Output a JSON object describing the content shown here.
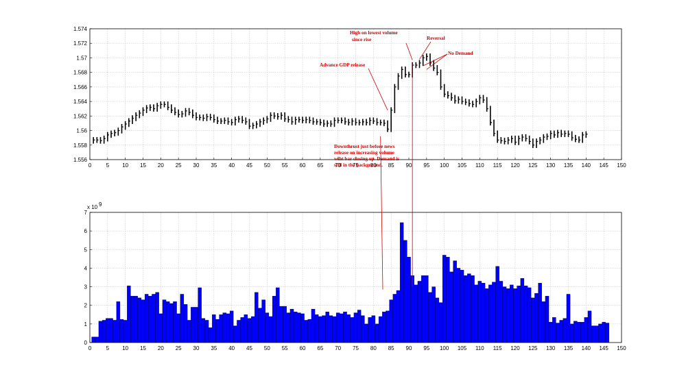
{
  "chart_data": [
    {
      "type": "ohlc",
      "xlim": [
        0,
        150
      ],
      "ylim": [
        1.556,
        1.574
      ],
      "grid": true,
      "x_ticks": [
        0,
        5,
        10,
        15,
        20,
        25,
        30,
        35,
        40,
        45,
        50,
        55,
        60,
        65,
        70,
        75,
        80,
        85,
        90,
        95,
        100,
        105,
        110,
        115,
        120,
        125,
        130,
        135,
        140,
        145,
        150
      ],
      "y_ticks": [
        1.556,
        1.558,
        1.56,
        1.562,
        1.564,
        1.566,
        1.568,
        1.57,
        1.572,
        1.574
      ],
      "y_tick_labels": [
        "1.556",
        "1.558",
        "1.56",
        "1.562",
        "1.564",
        "1.566",
        "1.568",
        "1.57",
        "1.572",
        "1.574"
      ],
      "bar_color": "#000000",
      "series": [
        {
          "close": [
            1.5587,
            1.5587,
            1.5586,
            1.5589,
            1.5594,
            1.5596,
            1.5597,
            1.56,
            1.5605,
            1.5609,
            1.5613,
            1.5617,
            1.5621,
            1.5624,
            1.5628,
            1.5631,
            1.5632,
            1.563,
            1.5634,
            1.5636,
            1.5636,
            1.5632,
            1.5628,
            1.5625,
            1.5622,
            1.5623,
            1.5627,
            1.5625,
            1.5621,
            1.5618,
            1.5618,
            1.5617,
            1.5619,
            1.5618,
            1.5615,
            1.5613,
            1.5613,
            1.5614,
            1.5612,
            1.5611,
            1.5615,
            1.5616,
            1.5614,
            1.5612,
            1.5606,
            1.5607,
            1.5609,
            1.5612,
            1.5614,
            1.5616,
            1.5621,
            1.562,
            1.5619,
            1.5621,
            1.5616,
            1.5615,
            1.5612,
            1.5615,
            1.5615,
            1.5614,
            1.5615,
            1.5614,
            1.5612,
            1.5612,
            1.5611,
            1.5609,
            1.561,
            1.5609,
            1.5614,
            1.5614,
            1.5614,
            1.5612,
            1.5611,
            1.5613,
            1.5611,
            1.5611,
            1.5612,
            1.5611,
            1.5614,
            1.5613,
            1.5611,
            1.5611,
            1.561,
            1.5602,
            1.5628,
            1.566,
            1.5675,
            1.5684,
            1.5677,
            1.5677,
            1.569,
            1.569,
            1.5693,
            1.57,
            1.5702,
            1.5693,
            1.5686,
            1.568,
            1.566,
            1.565,
            1.5648,
            1.5645,
            1.5641,
            1.5643,
            1.564,
            1.5639,
            1.5637,
            1.5636,
            1.564,
            1.5645,
            1.5642,
            1.563,
            1.5611,
            1.5596,
            1.5587,
            1.5586,
            1.5585,
            1.5587,
            1.5589,
            1.5584,
            1.5589,
            1.5591,
            1.5589,
            1.5585,
            1.558,
            1.5585,
            1.5587,
            1.5591,
            1.5592,
            1.5596,
            1.5594,
            1.5597,
            1.5595,
            1.5596,
            1.5595,
            1.559,
            1.5588,
            1.5587,
            1.5594,
            1.5595
          ]
        }
      ]
    },
    {
      "type": "bar",
      "xlim": [
        0,
        150
      ],
      "ylim": [
        0,
        7
      ],
      "grid": true,
      "x_ticks": [
        0,
        5,
        10,
        15,
        20,
        25,
        30,
        35,
        40,
        45,
        50,
        55,
        60,
        65,
        70,
        75,
        80,
        85,
        90,
        95,
        100,
        105,
        110,
        115,
        120,
        125,
        130,
        135,
        140,
        145,
        150
      ],
      "y_ticks": [
        0,
        1,
        2,
        3,
        4,
        5,
        6,
        7
      ],
      "y_tick_labels": [
        "0",
        "1",
        "2",
        "3",
        "4",
        "5",
        "6",
        "7"
      ],
      "y_exponent": "x 10",
      "y_exponent_power": "9",
      "bar_color": "#0000ff",
      "series": [
        {
          "values": [
            0.3,
            0.3,
            1.15,
            1.2,
            1.3,
            1.3,
            1.2,
            2.2,
            1.25,
            1.2,
            3.05,
            2.5,
            2.5,
            2.4,
            2.3,
            2.6,
            2.5,
            2.6,
            2.7,
            1.55,
            2.3,
            2.2,
            2.1,
            2.2,
            1.55,
            2.6,
            2.05,
            1.2,
            1.9,
            1.9,
            2.95,
            1.3,
            1.2,
            0.8,
            1.5,
            1.25,
            1.5,
            1.6,
            1.55,
            1.7,
            0.9,
            1.2,
            1.35,
            1.5,
            1.3,
            1.4,
            2.7,
            1.85,
            2.3,
            1.6,
            1.4,
            2.5,
            2.95,
            1.95,
            1.95,
            1.6,
            1.8,
            1.65,
            1.6,
            1.55,
            1.2,
            1.25,
            1.8,
            1.5,
            1.4,
            1.45,
            1.65,
            1.45,
            1.4,
            1.6,
            1.55,
            1.65,
            1.5,
            1.35,
            1.6,
            1.75,
            1.45,
            1.0,
            1.35,
            1.45,
            1.0,
            1.4,
            1.65,
            1.7,
            2.3,
            2.6,
            2.8,
            6.45,
            5.5,
            4.6,
            3.6,
            3.1,
            3.3,
            3.6,
            3.6,
            2.7,
            3.0,
            2.4,
            2.15,
            4.7,
            4.6,
            3.8,
            4.4,
            4.0,
            3.9,
            3.6,
            3.7,
            3.6,
            3.1,
            3.3,
            3.2,
            2.9,
            3.1,
            3.25,
            4.1,
            3.3,
            3.0,
            2.9,
            3.1,
            2.9,
            3.05,
            3.45,
            3.05,
            2.95,
            2.4,
            2.65,
            3.2,
            2.2,
            2.5,
            1.1,
            1.35,
            1.05,
            1.2,
            1.3,
            2.6,
            1.0,
            1.15,
            1.1,
            1.1,
            1.35,
            1.7,
            0.9,
            0.9,
            1.0,
            1.1,
            1.05
          ]
        }
      ]
    }
  ],
  "annotations": {
    "advance_gdp": "Advance GDP release",
    "high_low_line1": "High on lowest volume",
    "high_low_line2": "since rise",
    "reversal": "Reversal",
    "no_demand": "No Demand",
    "downthrust_line1": "Downthrust just before news",
    "downthrust_line2": "release on increasing volume",
    "downthrust_line3": "wiht bar closing up. Demand is",
    "downthrust_line4": "still in the background."
  },
  "colors": {
    "annotation": "#cc0000",
    "price_bars": "#000000",
    "volume_bars": "#0000ff",
    "grid": "#c8c8c8"
  }
}
